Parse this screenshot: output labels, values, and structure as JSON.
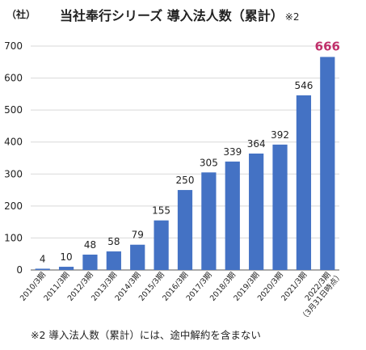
{
  "header": {
    "unit_label": "（社）",
    "title": "当社奉行シリーズ 導入法人数（累計）",
    "title_note": "※2"
  },
  "footnote": "※2 導入法人数（累計）には、途中解約を含まない",
  "colors": {
    "bar": "#4472c4",
    "highlight": "#c0306b",
    "grid": "#d9d9d9",
    "axis": "#555555"
  },
  "chart_data": {
    "type": "bar",
    "categories": [
      "2010/3期",
      "2011/3期",
      "2012/3期",
      "2013/3期",
      "2014/3期",
      "2015/3期",
      "2016/3期",
      "2017/3期",
      "2018/3期",
      "2019/3期",
      "2020/3期",
      "2021/3期",
      "2022/3期"
    ],
    "values": [
      4,
      10,
      48,
      58,
      79,
      155,
      250,
      305,
      339,
      364,
      392,
      546,
      666
    ],
    "ylim": [
      0,
      700
    ],
    "yticks": [
      0,
      100,
      200,
      300,
      400,
      500,
      600,
      700
    ],
    "grid": true,
    "highlight_index": 12,
    "x_annotation": "（3月31日時点）"
  }
}
